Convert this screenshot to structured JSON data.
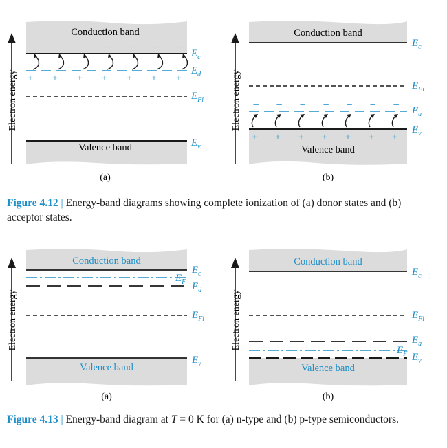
{
  "colors": {
    "accent": "#1e8fc8",
    "ink": "#1a1a1a",
    "band": "#dcdcdc"
  },
  "common": {
    "axis_label": "Electron energy",
    "conduction_band": "Conduction band",
    "valence_band": "Valence band",
    "Ec": "E",
    "Ec_sub": "c",
    "Ev": "E",
    "Ev_sub": "v",
    "Ed": "E",
    "Ed_sub": "d",
    "Ea": "E",
    "Ea_sub": "a",
    "EFi": "E",
    "EFi_sub": "Fi",
    "EF": "E",
    "EF_sub": "F",
    "minus": "−",
    "plus": "+"
  },
  "panels": [
    {
      "id": "4.12a",
      "label": "(a)"
    },
    {
      "id": "4.12b",
      "label": "(b)"
    },
    {
      "id": "4.13a",
      "label": "(a)"
    },
    {
      "id": "4.13b",
      "label": "(b)"
    }
  ],
  "fig412": {
    "number": "Figure 4.12",
    "separator": " | ",
    "text": "Energy-band diagrams showing complete ionization of (a) donor states and (b) acceptor states."
  },
  "fig413": {
    "number": "Figure 4.13",
    "separator": " | ",
    "text_before": "Energy-band diagram at ",
    "T": "T",
    "text_after": " = 0 K for (a) n-type and (b) p-type semiconductors."
  }
}
